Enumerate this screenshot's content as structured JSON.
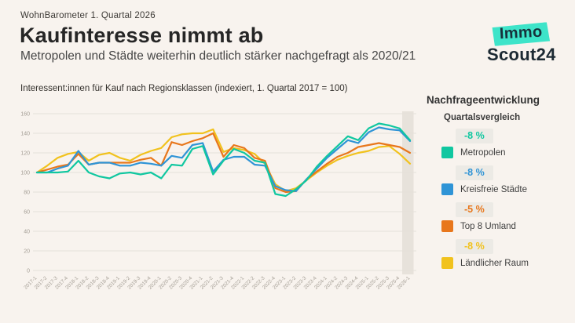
{
  "header": {
    "kicker": "WohnBarometer 1. Quartal 2026",
    "title": "Kaufinteresse nimmt ab",
    "subtitle": "Metropolen und Städte weiterhin deutlich stärker nachgefragt als 2020/21"
  },
  "logo": {
    "line1": "Immo",
    "line2": "Scout24",
    "highlight_color": "#3ee4c9"
  },
  "chart_caption": "Interessent:innen für Kauf nach Regionsklassen (indexiert, 1. Quartal 2017 = 100)",
  "legend": {
    "title": "Nachfrageentwicklung",
    "subtitle": "Quartalsvergleich",
    "items": [
      {
        "change": "-8 %",
        "label": "Metropolen",
        "color": "#10c7a0"
      },
      {
        "change": "-8 %",
        "label": "Kreisfreie Städte",
        "color": "#2f94d6"
      },
      {
        "change": "-5 %",
        "label": "Top 8 Umland",
        "color": "#e8771c"
      },
      {
        "change": "-8 %",
        "label": "Ländlicher Raum",
        "color": "#f1c21d"
      }
    ]
  },
  "chart_data": {
    "type": "line",
    "title": "Interessent:innen für Kauf nach Regionsklassen (indexiert, 1. Quartal 2017 = 100)",
    "xlabel": "",
    "ylabel": "",
    "ylim": [
      0,
      160
    ],
    "yticks": [
      0,
      20,
      40,
      60,
      80,
      100,
      120,
      140,
      160
    ],
    "grid": true,
    "legend_position": "right",
    "highlight_band": "2026-1",
    "colors": {
      "grid": "#e5e0d9",
      "tick_text": "#a39d94",
      "band": "#e7e2db"
    },
    "categories": [
      "2017-1",
      "2017-2",
      "2017-3",
      "2017-4",
      "2018-1",
      "2018-2",
      "2018-3",
      "2018-4",
      "2019-1",
      "2019-2",
      "2019-3",
      "2019-4",
      "2020-1",
      "2020-2",
      "2020-3",
      "2020-4",
      "2021-1",
      "2021-2",
      "2021-3",
      "2021-4",
      "2022-1",
      "2022-2",
      "2022-3",
      "2022-4",
      "2023-1",
      "2023-2",
      "2023-3",
      "2023-4",
      "2024-1",
      "2024-2",
      "2024-3",
      "2024-4",
      "2025-1",
      "2025-2",
      "2025-3",
      "2025-4",
      "2026-1"
    ],
    "series": [
      {
        "name": "Metropolen",
        "color": "#10c7a0",
        "values": [
          100,
          100,
          100,
          101,
          112,
          100,
          96,
          94,
          99,
          100,
          98,
          100,
          94,
          108,
          107,
          124,
          127,
          98,
          112,
          124,
          120,
          112,
          110,
          78,
          76,
          83,
          92,
          106,
          117,
          127,
          137,
          133,
          145,
          150,
          148,
          145,
          133
        ]
      },
      {
        "name": "Kreisfreie Städte",
        "color": "#2f94d6",
        "values": [
          100,
          100,
          104,
          107,
          122,
          108,
          110,
          110,
          107,
          107,
          110,
          109,
          107,
          117,
          115,
          128,
          130,
          101,
          113,
          116,
          116,
          108,
          107,
          86,
          82,
          81,
          93,
          104,
          115,
          124,
          133,
          130,
          141,
          146,
          144,
          143,
          132
        ]
      },
      {
        "name": "Top 8 Umland",
        "color": "#e8771c",
        "values": [
          100,
          103,
          106,
          108,
          119,
          108,
          110,
          110,
          110,
          110,
          113,
          115,
          107,
          131,
          128,
          132,
          135,
          140,
          116,
          128,
          125,
          115,
          112,
          84,
          80,
          81,
          93,
          101,
          109,
          116,
          120,
          126,
          128,
          130,
          128,
          126,
          120
        ]
      },
      {
        "name": "Ländlicher Raum",
        "color": "#f1c21d",
        "values": [
          100,
          107,
          115,
          119,
          121,
          112,
          118,
          120,
          115,
          112,
          118,
          122,
          125,
          136,
          139,
          140,
          140,
          144,
          121,
          125,
          123,
          119,
          109,
          88,
          81,
          84,
          92,
          100,
          107,
          113,
          117,
          120,
          122,
          126,
          127,
          119,
          109
        ]
      }
    ]
  }
}
